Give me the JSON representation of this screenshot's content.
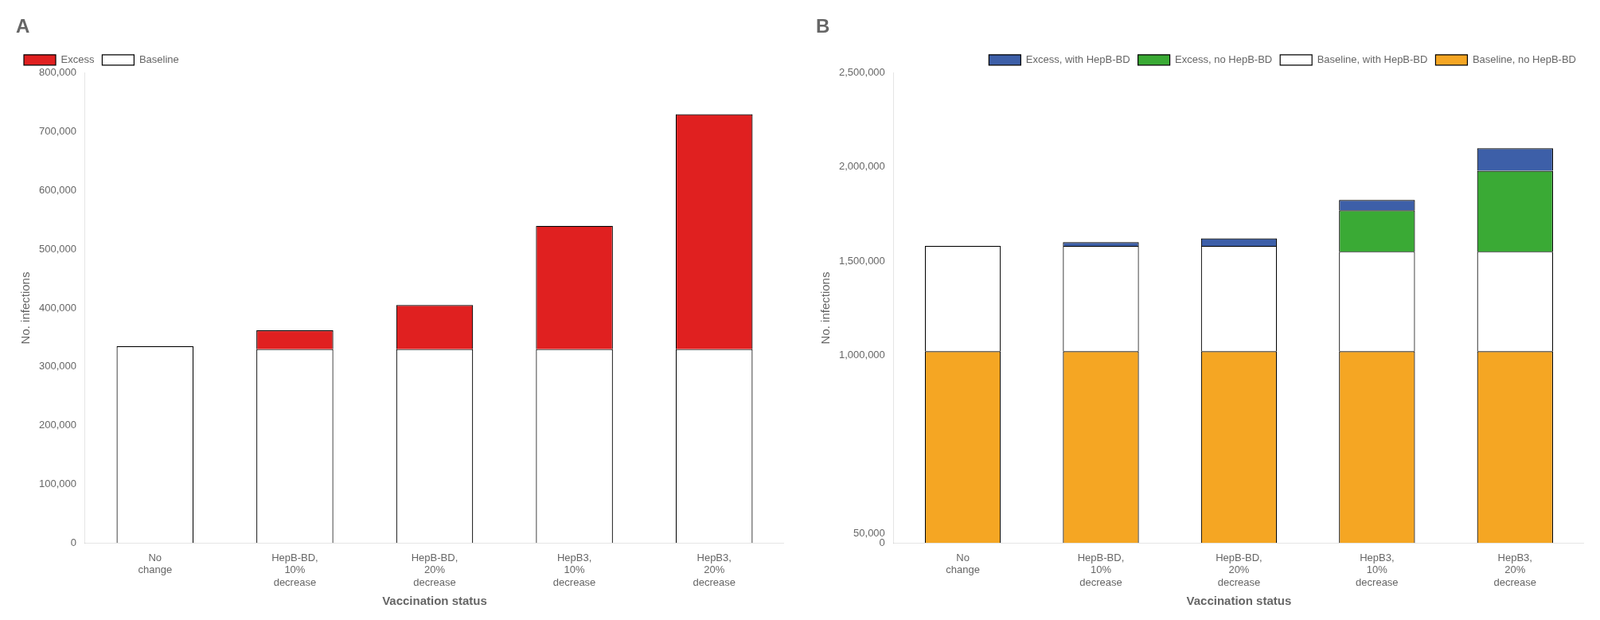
{
  "chart_data": [
    {
      "type": "bar",
      "title": "A",
      "categories": [
        "No\nchange",
        "HepB-BD,\n10%\ndecrease",
        "HepB-BD,\n20%\ndecrease",
        "HepB3,\n10%\ndecrease",
        "HepB3,\n20%\ndecrease"
      ],
      "series": [
        {
          "name": "Baseline",
          "color": "#ffffff",
          "values": [
            335000,
            330000,
            330000,
            330000,
            330000
          ]
        },
        {
          "name": "Excess",
          "color": "#e02020",
          "values": [
            0,
            32000,
            75000,
            210000,
            400000
          ]
        }
      ],
      "stacked": true,
      "ylim": [
        0,
        800000
      ],
      "yticks": [
        0,
        {
          "value": 100000,
          "label": "100,000"
        },
        {
          "value": 200000,
          "label": "200,000"
        },
        {
          "value": 300000,
          "label": "300,000"
        },
        {
          "value": 400000,
          "label": "400,000"
        },
        {
          "value": 500000,
          "label": "500,000"
        },
        {
          "value": 600000,
          "label": "600,000"
        },
        {
          "value": 700000,
          "label": "700,000"
        },
        {
          "value": 800000,
          "label": "800,000"
        }
      ],
      "ylabel": "No. infections",
      "xlabel": "Vaccination status",
      "legend": "upper left",
      "grid": false
    },
    {
      "type": "bar",
      "title": "B",
      "categories": [
        "No\nchange",
        "HepB-BD,\n10%\ndecrease",
        "HepB-BD,\n20%\ndecrease",
        "HepB3,\n10%\ndecrease",
        "HepB3,\n20%\ndecrease"
      ],
      "series": [
        {
          "name": "Baseline, no HepB-BD",
          "color": "#f5a623",
          "values": [
            1020000,
            1020000,
            1020000,
            1020000,
            1020000
          ]
        },
        {
          "name": "Baseline, with HepB-BD",
          "color": "#ffffff",
          "values": [
            560000,
            560000,
            560000,
            530000,
            530000
          ]
        },
        {
          "name": "Excess, no HepB-BD",
          "color": "#3aaa35",
          "values": [
            0,
            0,
            0,
            220000,
            430000
          ]
        },
        {
          "name": "Excess, with HepB-BD",
          "color": "#3d5fa8",
          "values": [
            0,
            20000,
            40000,
            55000,
            120000
          ]
        }
      ],
      "stacked": true,
      "ylim": [
        0,
        2500000
      ],
      "yticks": [
        0,
        {
          "value": 50000,
          "label": "50,000"
        },
        {
          "value": 1000000,
          "label": "1,000,000"
        },
        {
          "value": 1500000,
          "label": "1,500,000"
        },
        {
          "value": 2000000,
          "label": "2,000,000"
        },
        {
          "value": 2500000,
          "label": "2,500,000"
        }
      ],
      "ylabel": "No. infections",
      "xlabel": "Vaccination status",
      "legend": "upper right",
      "grid": false
    }
  ]
}
